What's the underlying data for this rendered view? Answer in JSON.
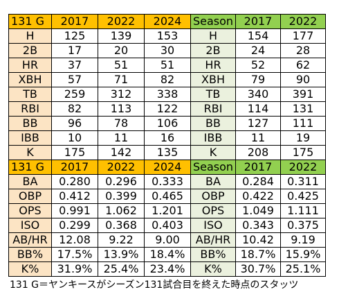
{
  "tables": [
    {
      "header": [
        "131 G",
        "2017",
        "2022",
        "2024",
        "Season",
        "2017",
        "2022"
      ],
      "rows": [
        [
          "H",
          "125",
          "139",
          "153",
          "H",
          "154",
          "177"
        ],
        [
          "2B",
          "17",
          "20",
          "30",
          "2B",
          "24",
          "28"
        ],
        [
          "HR",
          "37",
          "51",
          "51",
          "HR",
          "52",
          "62"
        ],
        [
          "XBH",
          "57",
          "71",
          "82",
          "XBH",
          "79",
          "90"
        ],
        [
          "TB",
          "259",
          "312",
          "338",
          "TB",
          "340",
          "391"
        ],
        [
          "RBI",
          "82",
          "113",
          "122",
          "RBI",
          "114",
          "131"
        ],
        [
          "BB",
          "96",
          "78",
          "106",
          "BB",
          "127",
          "111"
        ],
        [
          "IBB",
          "10",
          "11",
          "16",
          "IBB",
          "11",
          "19"
        ],
        [
          "K",
          "175",
          "142",
          "135",
          "K",
          "208",
          "175"
        ]
      ]
    },
    {
      "header": [
        "131 G",
        "2017",
        "2022",
        "2024",
        "Season",
        "2017",
        "2022"
      ],
      "rows": [
        [
          "BA",
          "0.280",
          "0.296",
          "0.333",
          "BA",
          "0.284",
          "0.311"
        ],
        [
          "OBP",
          "0.412",
          "0.399",
          "0.465",
          "OBP",
          "0.422",
          "0.425"
        ],
        [
          "OPS",
          "0.991",
          "1.062",
          "1.201",
          "OPS",
          "1.049",
          "1.111"
        ],
        [
          "ISO",
          "0.299",
          "0.368",
          "0.403",
          "ISO",
          "0.343",
          "0.375"
        ],
        [
          "AB/HR",
          "12.08",
          "9.22",
          "9.00",
          "AB/HR",
          "10.42",
          "9.19"
        ],
        [
          "BB%",
          "17.5%",
          "13.9%",
          "18.4%",
          "BB%",
          "18.7%",
          "15.9%"
        ],
        [
          "K%",
          "31.9%",
          "25.4%",
          "23.4%",
          "K%",
          "30.7%",
          "25.1%"
        ]
      ]
    }
  ],
  "caption": "131 G＝ヤンキースがシーズン131試合目を終えた時点のスタッツ"
}
